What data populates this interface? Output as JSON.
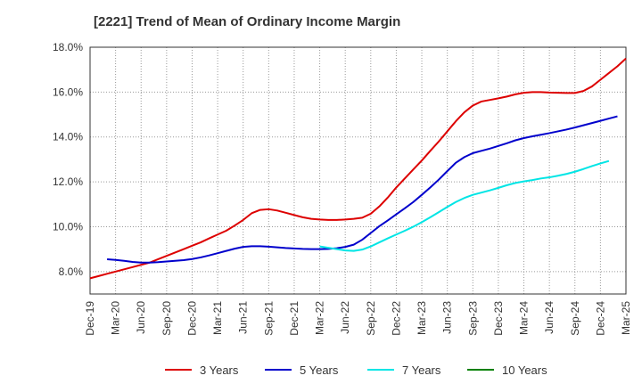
{
  "chart_data": {
    "type": "line",
    "title": "[2221]  Trend of Mean of Ordinary Income Margin",
    "xlabel": "",
    "ylabel": "",
    "ylim": [
      7.0,
      18.0
    ],
    "y_ticks": [
      "8.0%",
      "10.0%",
      "12.0%",
      "14.0%",
      "16.0%",
      "18.0%"
    ],
    "y_tick_values": [
      8,
      10,
      12,
      14,
      16,
      18
    ],
    "x_ticks": [
      "Dec-19",
      "Mar-20",
      "Jun-20",
      "Sep-20",
      "Dec-20",
      "Mar-21",
      "Jun-21",
      "Sep-21",
      "Dec-21",
      "Mar-22",
      "Jun-22",
      "Sep-22",
      "Dec-22",
      "Mar-23",
      "Jun-23",
      "Sep-23",
      "Dec-23",
      "Mar-24",
      "Jun-24",
      "Sep-24",
      "Dec-24",
      "Mar-25"
    ],
    "grid": true,
    "legend_position": "bottom",
    "series": [
      {
        "name": "3 Years",
        "color": "#dd0000",
        "start_index": 0,
        "values": [
          7.7,
          7.8,
          7.9,
          8.0,
          8.1,
          8.2,
          8.3,
          8.4,
          8.55,
          8.7,
          8.85,
          9.0,
          9.15,
          9.3,
          9.48,
          9.65,
          9.82,
          10.05,
          10.3,
          10.6,
          10.75,
          10.78,
          10.72,
          10.62,
          10.52,
          10.42,
          10.35,
          10.32,
          10.3,
          10.3,
          10.32,
          10.35,
          10.4,
          10.58,
          10.9,
          11.3,
          11.75,
          12.15,
          12.55,
          12.95,
          13.38,
          13.8,
          14.25,
          14.7,
          15.1,
          15.4,
          15.58,
          15.65,
          15.72,
          15.8,
          15.9,
          15.97,
          16.0,
          16.0,
          15.98,
          15.97,
          15.96,
          15.96,
          16.05,
          16.25,
          16.55,
          16.85,
          17.15,
          17.5
        ]
      },
      {
        "name": "5 Years",
        "color": "#0000cc",
        "start_index": 2,
        "values": [
          8.55,
          8.52,
          8.48,
          8.43,
          8.4,
          8.4,
          8.42,
          8.45,
          8.48,
          8.51,
          8.56,
          8.63,
          8.72,
          8.82,
          8.92,
          9.02,
          9.1,
          9.13,
          9.13,
          9.11,
          9.08,
          9.05,
          9.03,
          9.01,
          9.0,
          9.0,
          9.01,
          9.04,
          9.1,
          9.2,
          9.42,
          9.72,
          10.02,
          10.28,
          10.55,
          10.82,
          11.1,
          11.42,
          11.75,
          12.1,
          12.48,
          12.85,
          13.1,
          13.28,
          13.38,
          13.48,
          13.6,
          13.72,
          13.85,
          13.95,
          14.03,
          14.1,
          14.17,
          14.25,
          14.33,
          14.42,
          14.52,
          14.62,
          14.72,
          14.82,
          14.92
        ]
      },
      {
        "name": "7 Years",
        "color": "#00e5e5",
        "start_index": 27,
        "values": [
          9.12,
          9.06,
          9.0,
          8.94,
          8.92,
          8.98,
          9.12,
          9.3,
          9.48,
          9.65,
          9.82,
          10.0,
          10.2,
          10.42,
          10.65,
          10.88,
          11.1,
          11.28,
          11.42,
          11.52,
          11.62,
          11.73,
          11.85,
          11.95,
          12.02,
          12.08,
          12.15,
          12.2,
          12.27,
          12.35,
          12.45,
          12.57,
          12.7,
          12.82,
          12.93
        ]
      },
      {
        "name": "10 Years",
        "color": "#008000",
        "start_index": 0,
        "values": []
      }
    ]
  }
}
